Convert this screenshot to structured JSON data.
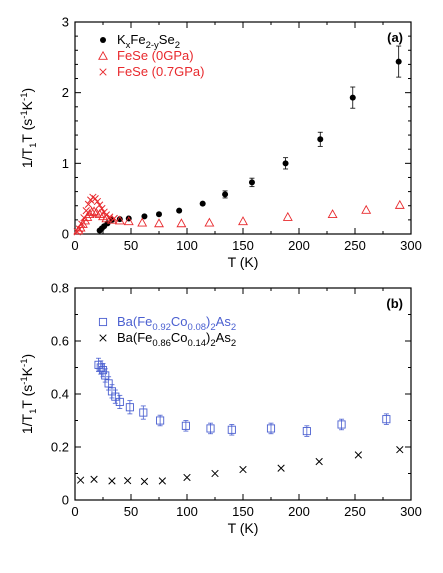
{
  "chart_data": [
    {
      "panel": "(a)",
      "type": "scatter",
      "title": "",
      "xlabel": "T (K)",
      "ylabel": {
        "main": "1/T",
        "sub": "1",
        "rest": "T (s",
        "sup1": "-1",
        "mid": "K",
        "sup2": "-1",
        "end": ")"
      },
      "xlim": [
        0,
        300
      ],
      "ylim": [
        0,
        3
      ],
      "xticks": [
        "0",
        "50",
        "100",
        "150",
        "200",
        "250",
        "300"
      ],
      "yticks": [
        "0",
        "1",
        "2",
        "3"
      ],
      "legend_position": "top-left",
      "series": [
        {
          "legend": {
            "p1": "K",
            "s1": "x",
            "p2": "Fe",
            "s2": "2-y",
            "p3": "Se",
            "s3": "2"
          },
          "marker": "filled-circle",
          "color": "#000000",
          "points": [
            {
              "x": 22,
              "y": 0.05
            },
            {
              "x": 24,
              "y": 0.08
            },
            {
              "x": 26,
              "y": 0.11
            },
            {
              "x": 29,
              "y": 0.15
            },
            {
              "x": 33,
              "y": 0.2
            },
            {
              "x": 40,
              "y": 0.21
            },
            {
              "x": 48,
              "y": 0.22
            },
            {
              "x": 62,
              "y": 0.25
            },
            {
              "x": 75,
              "y": 0.28
            },
            {
              "x": 93,
              "y": 0.33
            },
            {
              "x": 114,
              "y": 0.43
            },
            {
              "x": 134,
              "y": 0.56,
              "err": 0.05
            },
            {
              "x": 158,
              "y": 0.73,
              "err": 0.06
            },
            {
              "x": 188,
              "y": 1.0,
              "err": 0.08
            },
            {
              "x": 219,
              "y": 1.34,
              "err": 0.1
            },
            {
              "x": 248,
              "y": 1.93,
              "err": 0.15
            },
            {
              "x": 289,
              "y": 2.44,
              "err": 0.22
            }
          ]
        },
        {
          "legend": {
            "text": "FeSe (0GPa)"
          },
          "marker": "open-triangle",
          "color": "#e8292d",
          "points": [
            {
              "x": 3,
              "y": 0.05
            },
            {
              "x": 5,
              "y": 0.09
            },
            {
              "x": 7,
              "y": 0.14
            },
            {
              "x": 9,
              "y": 0.19
            },
            {
              "x": 11,
              "y": 0.24
            },
            {
              "x": 13,
              "y": 0.28
            },
            {
              "x": 15,
              "y": 0.31
            },
            {
              "x": 17,
              "y": 0.32
            },
            {
              "x": 19,
              "y": 0.3
            },
            {
              "x": 22,
              "y": 0.28
            },
            {
              "x": 25,
              "y": 0.25
            },
            {
              "x": 28,
              "y": 0.22
            },
            {
              "x": 33,
              "y": 0.2
            },
            {
              "x": 40,
              "y": 0.19
            },
            {
              "x": 48,
              "y": 0.18
            },
            {
              "x": 60,
              "y": 0.16
            },
            {
              "x": 75,
              "y": 0.15
            },
            {
              "x": 95,
              "y": 0.15
            },
            {
              "x": 120,
              "y": 0.16
            },
            {
              "x": 150,
              "y": 0.18
            },
            {
              "x": 190,
              "y": 0.24
            },
            {
              "x": 230,
              "y": 0.28
            },
            {
              "x": 260,
              "y": 0.34
            },
            {
              "x": 290,
              "y": 0.41
            }
          ]
        },
        {
          "legend": {
            "text": "FeSe (0.7GPa)"
          },
          "marker": "cross",
          "color": "#e8292d",
          "points": [
            {
              "x": 2,
              "y": 0.03
            },
            {
              "x": 4,
              "y": 0.07
            },
            {
              "x": 6,
              "y": 0.14
            },
            {
              "x": 8,
              "y": 0.23
            },
            {
              "x": 10,
              "y": 0.33
            },
            {
              "x": 12,
              "y": 0.42
            },
            {
              "x": 14,
              "y": 0.48
            },
            {
              "x": 16,
              "y": 0.52
            },
            {
              "x": 18,
              "y": 0.5
            },
            {
              "x": 20,
              "y": 0.46
            },
            {
              "x": 22,
              "y": 0.41
            },
            {
              "x": 24,
              "y": 0.36
            },
            {
              "x": 26,
              "y": 0.31
            },
            {
              "x": 28,
              "y": 0.27
            },
            {
              "x": 31,
              "y": 0.24
            },
            {
              "x": 35,
              "y": 0.22
            }
          ]
        }
      ]
    },
    {
      "panel": "(b)",
      "type": "scatter",
      "title": "",
      "xlabel": "T (K)",
      "ylabel": {
        "main": "1/T",
        "sub": "1",
        "rest": "T (s",
        "sup1": "-1",
        "mid": "K",
        "sup2": "-1",
        "end": ")"
      },
      "xlim": [
        0,
        300
      ],
      "ylim": [
        0,
        0.8
      ],
      "xticks": [
        "0",
        "50",
        "100",
        "150",
        "200",
        "250",
        "300"
      ],
      "yticks": [
        "0",
        "0.2",
        "0.4",
        "0.6",
        "0.8"
      ],
      "legend_position": "top-left",
      "series": [
        {
          "legend": {
            "p1": "Ba(Fe",
            "s1": "0.92",
            "p2": "Co",
            "s2": "0.08",
            "p3": ")",
            "s3": "2",
            "p4": "As",
            "s4": "2"
          },
          "marker": "open-square",
          "color": "#4a5fd0",
          "points": [
            {
              "x": 21,
              "y": 0.51,
              "err": 0.025
            },
            {
              "x": 23,
              "y": 0.5,
              "err": 0.025
            },
            {
              "x": 25,
              "y": 0.49,
              "err": 0.025
            },
            {
              "x": 27,
              "y": 0.47,
              "err": 0.025
            },
            {
              "x": 30,
              "y": 0.44,
              "err": 0.025
            },
            {
              "x": 33,
              "y": 0.41,
              "err": 0.025
            },
            {
              "x": 36,
              "y": 0.39,
              "err": 0.025
            },
            {
              "x": 40,
              "y": 0.37,
              "err": 0.025
            },
            {
              "x": 49,
              "y": 0.35,
              "err": 0.025
            },
            {
              "x": 61,
              "y": 0.33,
              "err": 0.025
            },
            {
              "x": 76,
              "y": 0.3,
              "err": 0.02
            },
            {
              "x": 99,
              "y": 0.28,
              "err": 0.02
            },
            {
              "x": 121,
              "y": 0.27,
              "err": 0.02
            },
            {
              "x": 140,
              "y": 0.265,
              "err": 0.02
            },
            {
              "x": 175,
              "y": 0.27,
              "err": 0.02
            },
            {
              "x": 207,
              "y": 0.26,
              "err": 0.02
            },
            {
              "x": 238,
              "y": 0.285,
              "err": 0.02
            },
            {
              "x": 278,
              "y": 0.305,
              "err": 0.02
            }
          ]
        },
        {
          "legend": {
            "p1": "Ba(Fe",
            "s1": "0.86",
            "p2": "Co",
            "s2": "0.14",
            "p3": ")",
            "s3": "2",
            "p4": "As",
            "s4": "2"
          },
          "marker": "cross",
          "color": "#000000",
          "points": [
            {
              "x": 5,
              "y": 0.075
            },
            {
              "x": 17,
              "y": 0.078
            },
            {
              "x": 33,
              "y": 0.072
            },
            {
              "x": 47,
              "y": 0.073
            },
            {
              "x": 62,
              "y": 0.07
            },
            {
              "x": 78,
              "y": 0.072
            },
            {
              "x": 100,
              "y": 0.085
            },
            {
              "x": 125,
              "y": 0.1
            },
            {
              "x": 150,
              "y": 0.115
            },
            {
              "x": 184,
              "y": 0.12
            },
            {
              "x": 218,
              "y": 0.145
            },
            {
              "x": 253,
              "y": 0.17
            },
            {
              "x": 290,
              "y": 0.19
            }
          ]
        }
      ]
    }
  ]
}
